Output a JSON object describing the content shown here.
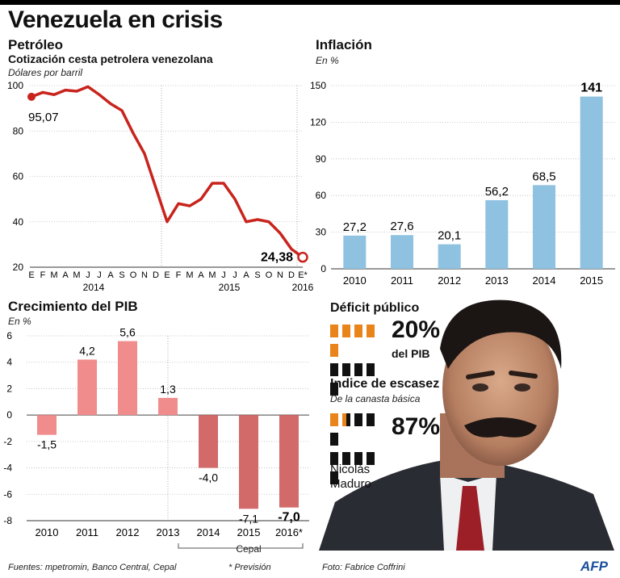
{
  "title": "Venezuela en crisis",
  "oil": {
    "title": "Petróleo",
    "subtitle": "Cotización cesta petrolera venezolana",
    "unit": "Dólares por barril",
    "first_label": "95,07",
    "last_label": "24,38"
  },
  "inflation": {
    "title": "Inflación",
    "unit": "En %"
  },
  "gdp": {
    "title": "Crecimiento del PIB",
    "unit": "En %",
    "bracket_label": "Cepal"
  },
  "deficit": {
    "title": "Déficit público",
    "value": "20%",
    "of": "del PIB",
    "filled": 2,
    "total": 10
  },
  "scarcity": {
    "title": "Indice de escasez",
    "subtitle": "De la canasta básica",
    "value": "87%",
    "filled": 1.5,
    "total": 10
  },
  "person": {
    "first": "Nicolás",
    "last": "Maduro"
  },
  "footer": {
    "sources": "Fuentes: mpetromin, Banco Central, Cepal",
    "note": "* Previsión",
    "photo": "Foto: Fabrice Coffrini",
    "logo": "AFP"
  },
  "colors": {
    "oil_line": "#c8241d",
    "inflation_bar": "#8fc1e0",
    "gdp_pos": "#f08c8c",
    "gdp_neg": "#d26a6a",
    "orange": "#e8841a"
  },
  "chart_data": [
    {
      "type": "line",
      "categories": [
        "E",
        "F",
        "M",
        "A",
        "M",
        "J",
        "J",
        "A",
        "S",
        "O",
        "N",
        "D",
        "E",
        "F",
        "M",
        "A",
        "M",
        "J",
        "J",
        "A",
        "S",
        "O",
        "N",
        "D",
        "E*"
      ],
      "year_labels": [
        "2014",
        "2015",
        "2016"
      ],
      "values": [
        95.07,
        97,
        96,
        98,
        97.5,
        99.5,
        96,
        92,
        89,
        79,
        70,
        55,
        40,
        48,
        47,
        50,
        57,
        57,
        50,
        40,
        41,
        40,
        35,
        28,
        24.38
      ],
      "yticks": [
        20,
        40,
        60,
        80,
        100
      ],
      "ylim": [
        20,
        100
      ]
    },
    {
      "type": "bar",
      "categories": [
        "2010",
        "2011",
        "2012",
        "2013",
        "2014",
        "2015"
      ],
      "values": [
        27.2,
        27.6,
        20.1,
        56.2,
        68.5,
        141
      ],
      "labels": [
        "27,2",
        "27,6",
        "20,1",
        "56,2",
        "68,5",
        "141"
      ],
      "yticks": [
        0,
        30,
        60,
        90,
        120,
        150
      ],
      "ylim": [
        0,
        150
      ]
    },
    {
      "type": "bar",
      "categories": [
        "2010",
        "2011",
        "2012",
        "2013",
        "2014",
        "2015",
        "2016*"
      ],
      "values": [
        -1.5,
        4.2,
        5.6,
        1.3,
        -4.0,
        -7.1,
        -7.0
      ],
      "labels": [
        "-1,5",
        "4,2",
        "5,6",
        "1,3",
        "-4,0",
        "-7,1",
        "-7,0"
      ],
      "yticks": [
        -8,
        -6,
        -4,
        -2,
        0,
        2,
        4,
        6
      ],
      "ytick_labels": [
        "-8",
        "-6",
        "-4",
        "-2",
        "0",
        "2",
        "4",
        "6"
      ],
      "ylim": [
        -8,
        6
      ]
    }
  ]
}
